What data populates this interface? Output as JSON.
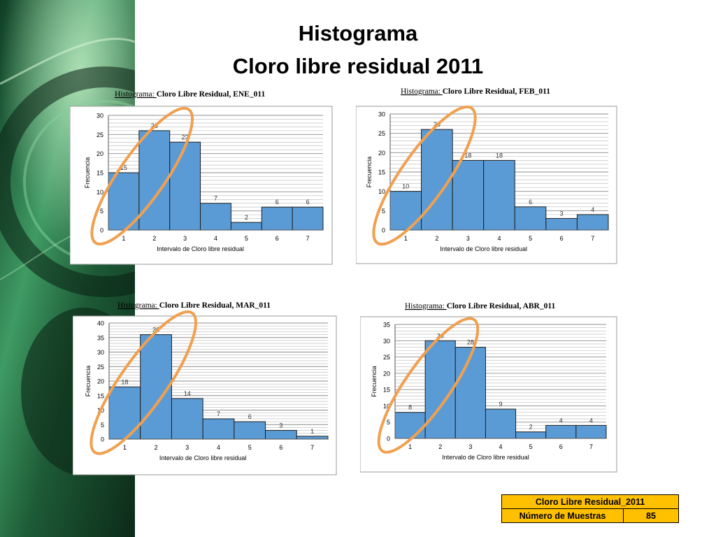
{
  "slide": {
    "title_line1": "Histograma",
    "title_line2": "Cloro libre residual 2011"
  },
  "colors": {
    "bar": "#5b9bd5",
    "highlight": "#f0a050",
    "table_bg": "#ffc000",
    "deco_green": "#2e7d4f"
  },
  "chart_data": [
    {
      "type": "bar",
      "title_prefix": "Histograma:",
      "title": "Cloro Libre Residual, ENE_011",
      "categories": [
        "1",
        "2",
        "3",
        "4",
        "5",
        "6",
        "7"
      ],
      "values": [
        15,
        26,
        23,
        7,
        2,
        6,
        6
      ],
      "xlabel": "Intervalo de Cloro libre residual",
      "ylabel": "Frecuencia",
      "ylim": [
        0,
        30
      ],
      "yticks": [
        0,
        5,
        10,
        15,
        20,
        25,
        30
      ],
      "grid": true,
      "highlight_bars": [
        1,
        2,
        3
      ]
    },
    {
      "type": "bar",
      "title_prefix": "Histograma:",
      "title": "Cloro Libre Residual, FEB_011",
      "categories": [
        "1",
        "2",
        "3",
        "4",
        "5",
        "6",
        "7"
      ],
      "values": [
        10,
        26,
        18,
        18,
        6,
        3,
        4
      ],
      "xlabel": "Intervalo de Cloro libre residual",
      "ylabel": "Frecuencia",
      "ylim": [
        0,
        30
      ],
      "yticks": [
        0,
        5,
        10,
        15,
        20,
        25,
        30
      ],
      "grid": true,
      "highlight_bars": [
        1,
        2,
        3
      ]
    },
    {
      "type": "bar",
      "title_prefix": "Histograma:",
      "title": "Cloro Libre Residual, MAR_011",
      "categories": [
        "1",
        "2",
        "3",
        "4",
        "5",
        "6",
        "7"
      ],
      "values": [
        18,
        36,
        14,
        7,
        6,
        3,
        1
      ],
      "xlabel": "Intervalo de Cloro libre residual",
      "ylabel": "Frecuencia",
      "ylim": [
        0,
        40
      ],
      "yticks": [
        0,
        5,
        10,
        15,
        20,
        25,
        30,
        35,
        40
      ],
      "grid": true,
      "highlight_bars": [
        1,
        2,
        3
      ]
    },
    {
      "type": "bar",
      "title_prefix": "Histograma:",
      "title": "Cloro Libre Residual, ABR_011",
      "categories": [
        "1",
        "2",
        "3",
        "4",
        "5",
        "6",
        "7"
      ],
      "values": [
        8,
        30,
        28,
        9,
        2,
        4,
        4
      ],
      "xlabel": "Intervalo de Cloro libre residual",
      "ylabel": "Frecuencia",
      "ylim": [
        0,
        35
      ],
      "yticks": [
        0,
        5,
        10,
        15,
        20,
        25,
        30,
        35
      ],
      "grid": true,
      "highlight_bars": [
        1,
        2,
        3
      ]
    }
  ],
  "summary_table": {
    "header": "Cloro Libre Residual_2011",
    "row_label": "Número de Muestras",
    "row_value": "85"
  }
}
